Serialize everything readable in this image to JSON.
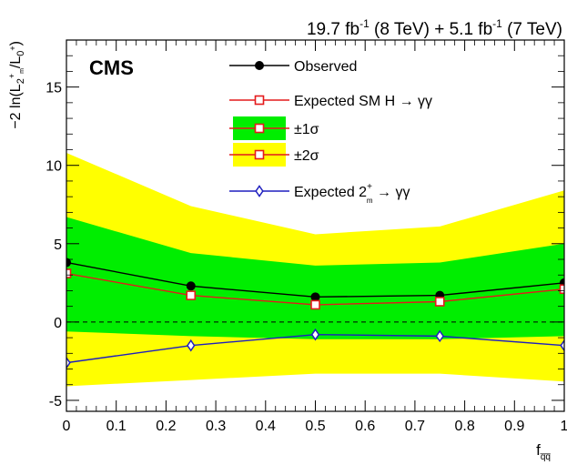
{
  "chart_data": {
    "type": "line",
    "lumi_label": {
      "main": "19.7 fb",
      "exp1": "-1",
      "mid": " (8 TeV) + 5.1 fb",
      "exp2": "-1",
      "tail": " (7 TeV)"
    },
    "experiment_label": "CMS",
    "xlabel": {
      "main": "f",
      "sub": "q̅q̅"
    },
    "ylabel": {
      "prefix": "−2 ln(L",
      "sub1": "2",
      "sup1": "+",
      "subsub1": "m",
      "mid": "/L",
      "sub2": "0",
      "sup2": "+",
      "suffix": ")"
    },
    "xlim": [
      0,
      1
    ],
    "ylim": [
      -5.7,
      18
    ],
    "x_ticks": [
      "0",
      "0.1",
      "0.2",
      "0.3",
      "0.4",
      "0.5",
      "0.6",
      "0.7",
      "0.8",
      "0.9",
      "1"
    ],
    "x_tick_values": [
      0,
      0.1,
      0.2,
      0.3,
      0.4,
      0.5,
      0.6,
      0.7,
      0.8,
      0.9,
      1
    ],
    "y_ticks": [
      "-5",
      "0",
      "5",
      "10",
      "15"
    ],
    "y_tick_values": [
      -5,
      0,
      5,
      10,
      15
    ],
    "x": [
      0,
      0.25,
      0.5,
      0.75,
      1
    ],
    "band_2sigma": {
      "lower": [
        -4.1,
        -3.7,
        -3.3,
        -3.3,
        -3.8
      ],
      "upper": [
        10.8,
        7.4,
        5.6,
        6.1,
        8.4
      ]
    },
    "band_1sigma": {
      "lower": [
        -0.6,
        -0.9,
        -1.1,
        -1.1,
        -0.9
      ],
      "upper": [
        6.7,
        4.4,
        3.6,
        3.8,
        5.0
      ]
    },
    "series": [
      {
        "name": "Observed",
        "values": [
          3.8,
          2.3,
          1.6,
          1.7,
          2.5
        ],
        "color": "#000000",
        "marker": "filled-circle"
      },
      {
        "name": "Expected SM H → γγ",
        "values": [
          3.1,
          1.7,
          1.1,
          1.3,
          2.1
        ],
        "color": "#e41a1c",
        "marker": "open-square"
      },
      {
        "name": "Expected 2m+ → γγ",
        "values": [
          -2.6,
          -1.5,
          -0.8,
          -0.9,
          -1.5
        ],
        "color": "#1f1fbf",
        "marker": "open-diamond"
      }
    ],
    "zero_line": "dashed",
    "legend": {
      "position": "top-right",
      "observed": "Observed",
      "expected_sm": "Expected SM H → γγ",
      "one_sigma": "±1σ",
      "two_sigma": "±2σ",
      "expected_alt_prefix": "Expected 2",
      "expected_alt_sup": "+",
      "expected_alt_sub": "m",
      "expected_alt_suffix": " → γγ"
    },
    "colors": {
      "band_1sigma": "#00ee00",
      "band_2sigma": "#ffff00",
      "observed": "#000000",
      "expected_sm": "#e41a1c",
      "expected_alt": "#1f1fbf"
    },
    "grid": false
  }
}
